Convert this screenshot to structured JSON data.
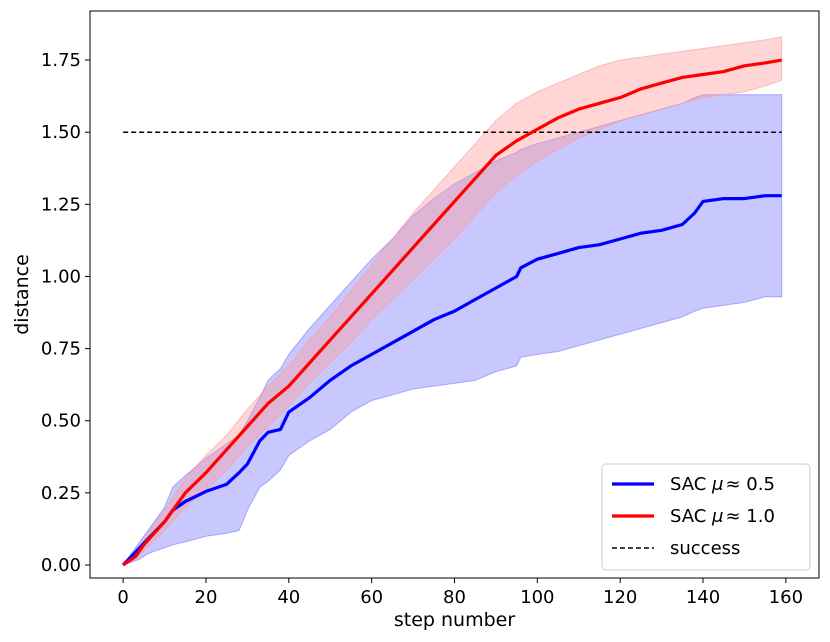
{
  "chart_data": {
    "type": "line",
    "xlabel": "step number",
    "ylabel": "distance",
    "xlim": [
      -8,
      168
    ],
    "ylim": [
      -0.045,
      1.92
    ],
    "xticks": [
      0,
      20,
      40,
      60,
      80,
      100,
      120,
      140,
      160
    ],
    "xtick_labels": [
      "0",
      "20",
      "40",
      "60",
      "80",
      "100",
      "120",
      "140",
      "160"
    ],
    "yticks": [
      0.0,
      0.25,
      0.5,
      0.75,
      1.0,
      1.25,
      1.5,
      1.75
    ],
    "ytick_labels": [
      "0.00",
      "0.25",
      "0.50",
      "0.75",
      "1.00",
      "1.25",
      "1.50",
      "1.75"
    ],
    "grid": false,
    "legend_position": "bottom-right",
    "series": [
      {
        "name": "SAC μ≈ 0.5",
        "legend_prefix": "SAC ",
        "legend_mu": "μ",
        "legend_suffix": "≈ 0.5",
        "color": "#0000ff",
        "band_color": "#7b7bff",
        "x": [
          0,
          2,
          4,
          6,
          10,
          12,
          15,
          20,
          25,
          28,
          30,
          33,
          35,
          38,
          40,
          45,
          50,
          55,
          60,
          65,
          70,
          75,
          80,
          85,
          90,
          95,
          96,
          100,
          105,
          110,
          115,
          120,
          125,
          130,
          135,
          138,
          140,
          145,
          150,
          155,
          159
        ],
        "mean": [
          0.0,
          0.03,
          0.06,
          0.09,
          0.15,
          0.19,
          0.22,
          0.255,
          0.28,
          0.32,
          0.35,
          0.43,
          0.46,
          0.47,
          0.53,
          0.58,
          0.64,
          0.69,
          0.73,
          0.77,
          0.81,
          0.85,
          0.88,
          0.92,
          0.96,
          1.0,
          1.03,
          1.06,
          1.08,
          1.1,
          1.11,
          1.13,
          1.15,
          1.16,
          1.18,
          1.22,
          1.26,
          1.27,
          1.27,
          1.28,
          1.28
        ],
        "upper": [
          0.0,
          0.04,
          0.08,
          0.12,
          0.2,
          0.27,
          0.31,
          0.37,
          0.42,
          0.45,
          0.5,
          0.58,
          0.64,
          0.68,
          0.73,
          0.82,
          0.9,
          0.98,
          1.06,
          1.13,
          1.21,
          1.27,
          1.32,
          1.36,
          1.4,
          1.43,
          1.44,
          1.46,
          1.48,
          1.5,
          1.52,
          1.54,
          1.56,
          1.58,
          1.6,
          1.62,
          1.63,
          1.63,
          1.63,
          1.63,
          1.63
        ],
        "lower": [
          0.0,
          0.01,
          0.02,
          0.04,
          0.06,
          0.07,
          0.08,
          0.1,
          0.11,
          0.12,
          0.19,
          0.27,
          0.29,
          0.33,
          0.38,
          0.43,
          0.47,
          0.53,
          0.57,
          0.59,
          0.61,
          0.62,
          0.63,
          0.64,
          0.67,
          0.69,
          0.72,
          0.73,
          0.74,
          0.76,
          0.78,
          0.8,
          0.82,
          0.84,
          0.86,
          0.88,
          0.89,
          0.9,
          0.91,
          0.93,
          0.93
        ]
      },
      {
        "name": "SAC μ≈ 1.0",
        "legend_prefix": "SAC ",
        "legend_mu": "μ",
        "legend_suffix": "≈ 1.0",
        "color": "#ff0000",
        "band_color": "#ff9a9a",
        "x": [
          0,
          3,
          5,
          10,
          15,
          20,
          25,
          30,
          35,
          40,
          45,
          50,
          55,
          60,
          65,
          70,
          75,
          80,
          85,
          90,
          95,
          100,
          105,
          110,
          115,
          120,
          125,
          130,
          135,
          140,
          145,
          150,
          155,
          159
        ],
        "mean": [
          0.0,
          0.03,
          0.07,
          0.15,
          0.25,
          0.32,
          0.4,
          0.48,
          0.56,
          0.62,
          0.7,
          0.78,
          0.86,
          0.94,
          1.02,
          1.1,
          1.18,
          1.26,
          1.34,
          1.42,
          1.47,
          1.51,
          1.55,
          1.58,
          1.6,
          1.62,
          1.65,
          1.67,
          1.69,
          1.7,
          1.71,
          1.73,
          1.74,
          1.75
        ],
        "upper": [
          0.0,
          0.04,
          0.09,
          0.19,
          0.3,
          0.38,
          0.45,
          0.54,
          0.62,
          0.69,
          0.78,
          0.86,
          0.95,
          1.04,
          1.13,
          1.22,
          1.3,
          1.38,
          1.46,
          1.54,
          1.6,
          1.64,
          1.67,
          1.7,
          1.73,
          1.75,
          1.76,
          1.77,
          1.78,
          1.79,
          1.8,
          1.81,
          1.82,
          1.83
        ],
        "lower": [
          0.0,
          0.02,
          0.05,
          0.12,
          0.2,
          0.26,
          0.33,
          0.41,
          0.48,
          0.55,
          0.63,
          0.7,
          0.77,
          0.85,
          0.92,
          0.99,
          1.06,
          1.13,
          1.21,
          1.29,
          1.35,
          1.4,
          1.44,
          1.48,
          1.51,
          1.54,
          1.56,
          1.58,
          1.6,
          1.62,
          1.63,
          1.64,
          1.66,
          1.68
        ]
      }
    ],
    "reference_line": {
      "name": "success",
      "y": 1.5,
      "x_start": 0,
      "x_end": 159,
      "color": "#000000",
      "style": "dashed"
    }
  }
}
